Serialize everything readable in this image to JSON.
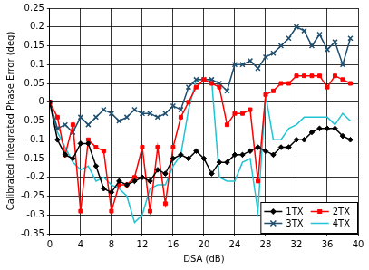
{
  "chart_data": {
    "type": "line",
    "x_label": "DSA (dB)",
    "y_label": "Calibrated Integrated Phase Error (deg)",
    "x": [
      0,
      1,
      2,
      3,
      4,
      5,
      6,
      7,
      8,
      9,
      10,
      11,
      12,
      13,
      14,
      15,
      16,
      17,
      18,
      19,
      20,
      21,
      22,
      23,
      24,
      25,
      26,
      27,
      28,
      29,
      30,
      31,
      32,
      33,
      34,
      35,
      36,
      37,
      38,
      39
    ],
    "series": [
      {
        "name": "1TX",
        "color": "#000000",
        "marker": "diamond",
        "values": [
          0,
          -0.1,
          -0.14,
          -0.15,
          -0.11,
          -0.11,
          -0.17,
          -0.23,
          -0.24,
          -0.21,
          -0.22,
          -0.21,
          -0.2,
          -0.21,
          -0.18,
          -0.19,
          -0.15,
          -0.14,
          -0.15,
          -0.13,
          -0.15,
          -0.19,
          -0.16,
          -0.16,
          -0.14,
          -0.14,
          -0.13,
          -0.12,
          -0.13,
          -0.14,
          -0.12,
          -0.12,
          -0.1,
          -0.1,
          -0.08,
          -0.07,
          -0.07,
          -0.07,
          -0.09,
          -0.1
        ]
      },
      {
        "name": "2TX",
        "color": "#ff0000",
        "marker": "square",
        "values": [
          0,
          -0.04,
          -0.14,
          -0.06,
          -0.29,
          -0.1,
          -0.12,
          -0.13,
          -0.29,
          -0.22,
          -0.22,
          -0.2,
          -0.12,
          -0.29,
          -0.12,
          -0.27,
          -0.12,
          -0.04,
          0,
          0.04,
          0.06,
          0.05,
          0.04,
          -0.06,
          -0.03,
          -0.03,
          -0.02,
          -0.21,
          0.02,
          0.03,
          0.05,
          0.05,
          0.07,
          0.07,
          0.07,
          0.07,
          0.04,
          0.07,
          0.06,
          0.05
        ]
      },
      {
        "name": "3TX",
        "color": "#1f4e6e",
        "marker": "x",
        "values": [
          0,
          -0.07,
          -0.06,
          -0.08,
          -0.04,
          -0.06,
          -0.04,
          -0.02,
          -0.03,
          -0.05,
          -0.04,
          -0.02,
          -0.03,
          -0.03,
          -0.04,
          -0.03,
          -0.01,
          -0.02,
          0.04,
          0.06,
          0.06,
          0.06,
          0.05,
          0.03,
          0.1,
          0.1,
          0.11,
          0.09,
          0.12,
          0.13,
          0.15,
          0.17,
          0.2,
          0.19,
          0.15,
          0.18,
          0.14,
          0.16,
          0.1,
          0.17
        ]
      },
      {
        "name": "4TX",
        "color": "#22c4d4",
        "marker": "none",
        "values": [
          0,
          -0.08,
          -0.12,
          -0.16,
          -0.18,
          -0.17,
          -0.21,
          -0.2,
          -0.22,
          -0.23,
          -0.25,
          -0.32,
          -0.3,
          -0.23,
          -0.22,
          -0.22,
          -0.17,
          -0.14,
          -0.02,
          0.06,
          0.06,
          0.06,
          -0.2,
          -0.21,
          -0.21,
          -0.16,
          -0.15,
          -0.29,
          0.02,
          -0.1,
          -0.1,
          -0.07,
          -0.06,
          -0.04,
          -0.04,
          -0.04,
          -0.04,
          -0.06,
          -0.03,
          -0.05
        ]
      }
    ],
    "xlim": [
      0,
      40
    ],
    "xticks": [
      0,
      4,
      8,
      12,
      16,
      20,
      24,
      28,
      32,
      36,
      40
    ],
    "ylim": [
      -0.35,
      0.25
    ],
    "yticks": [
      -0.35,
      -0.3,
      -0.25,
      -0.2,
      -0.15,
      -0.1,
      -0.05,
      0,
      0.05,
      0.1,
      0.15,
      0.2,
      0.25
    ],
    "grid": true,
    "legend": "lower right"
  }
}
